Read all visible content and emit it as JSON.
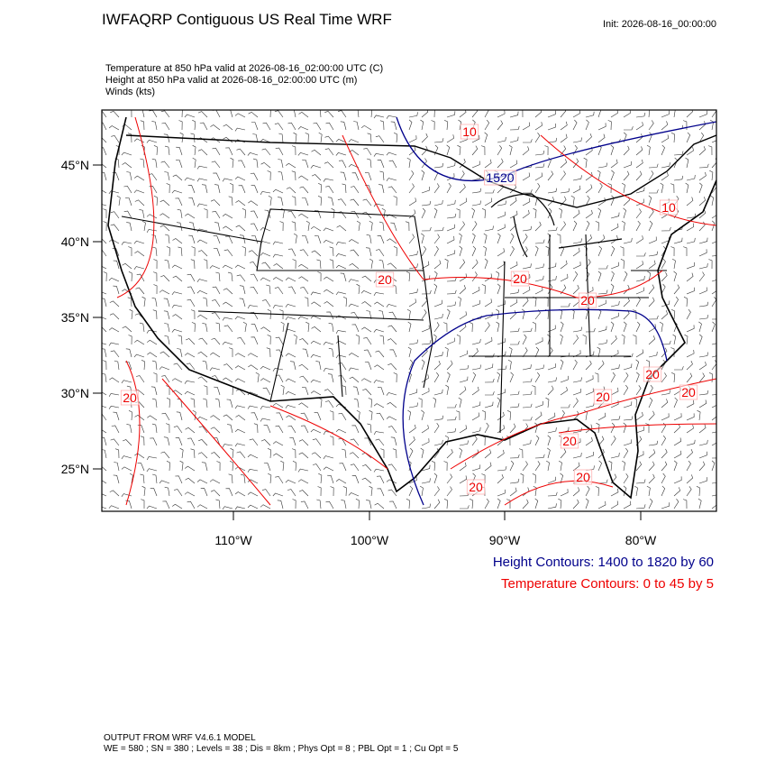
{
  "header": {
    "title": "IWFAQRP Contiguous US Real Time WRF",
    "init": "Init: 2026-08-16_00:00:00"
  },
  "fields": [
    "Temperature at 850 hPa valid at 2026-08-16_02:00:00 UTC   (C)",
    "Height at 850 hPa valid at 2026-08-16_02:00:00 UTC   (m)",
    "Winds   (kts)"
  ],
  "lat_labels": [
    "45°N",
    "40°N",
    "35°N",
    "30°N",
    "25°N"
  ],
  "lon_labels": [
    "110°W",
    "100°W",
    "90°W",
    "80°W"
  ],
  "contour_labels": [
    "10",
    "1520",
    "10",
    "20",
    "20",
    "20",
    "20",
    "20",
    "20",
    "20",
    "20",
    "20",
    "20"
  ],
  "legend": {
    "height": "Height Contours: 1400 to 1820 by 60",
    "temperature": "Temperature Contours: 0 to 45 by 5"
  },
  "footer": [
    "OUTPUT FROM WRF V4.6.1 MODEL",
    "WE = 580 ; SN = 380 ; Levels = 38 ; Dis = 8km ; Phys Opt = 8 ; PBL Opt = 1 ; Cu Opt = 5"
  ]
}
